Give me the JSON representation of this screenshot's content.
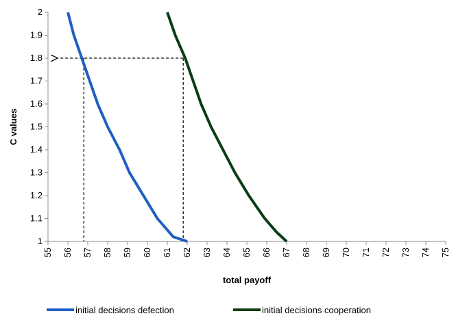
{
  "chart_data": {
    "type": "line",
    "xlabel": "total payoff",
    "ylabel": "C values",
    "xlim": [
      55,
      75
    ],
    "ylim": [
      1,
      2
    ],
    "x_ticks": [
      "55",
      "56",
      "57",
      "58",
      "59",
      "60",
      "61",
      "62",
      "63",
      "64",
      "65",
      "66",
      "67",
      "68",
      "69",
      "70",
      "71",
      "72",
      "73",
      "74",
      "75"
    ],
    "y_ticks": [
      "1",
      "1.1",
      "1.2",
      "1.3",
      "1.4",
      "1.5",
      "1.6",
      "1.7",
      "1.8",
      "1.9",
      "2"
    ],
    "grid": false,
    "legend_position": "bottom",
    "series": [
      {
        "name": "initial decisions defection",
        "color": "#1f5fc2",
        "points": [
          [
            56.0,
            2.0
          ],
          [
            56.3,
            1.9
          ],
          [
            56.7,
            1.8
          ],
          [
            57.1,
            1.7
          ],
          [
            57.5,
            1.6
          ],
          [
            58.0,
            1.5
          ],
          [
            58.6,
            1.4
          ],
          [
            59.1,
            1.3
          ],
          [
            59.8,
            1.2
          ],
          [
            60.5,
            1.1
          ],
          [
            61.3,
            1.02
          ],
          [
            62.0,
            1.0
          ]
        ]
      },
      {
        "name": "initial decisions cooperation",
        "color": "#0b3d14",
        "points": [
          [
            61.0,
            2.0
          ],
          [
            61.4,
            1.9
          ],
          [
            61.9,
            1.8
          ],
          [
            62.3,
            1.7
          ],
          [
            62.7,
            1.6
          ],
          [
            63.2,
            1.5
          ],
          [
            63.8,
            1.4
          ],
          [
            64.4,
            1.3
          ],
          [
            65.1,
            1.2
          ],
          [
            65.9,
            1.1
          ],
          [
            66.5,
            1.04
          ],
          [
            67.0,
            1.0
          ]
        ]
      }
    ],
    "annotations": {
      "reference_y": 1.8,
      "reference_x_values": [
        56.8,
        61.8
      ],
      "arrow_direction": "left"
    }
  }
}
